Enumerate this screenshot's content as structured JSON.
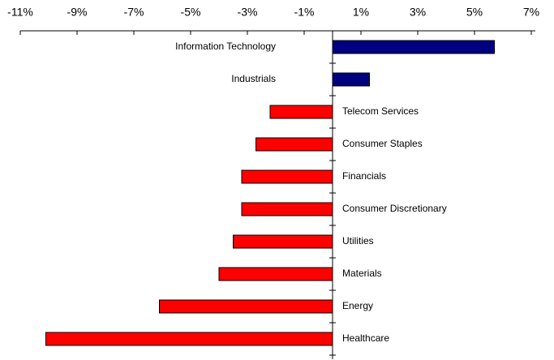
{
  "chart_data": {
    "type": "hbar",
    "categories": [
      "Information Technology",
      "Industrials",
      "Telecom Services",
      "Consumer Staples",
      "Financials",
      "Consumer Discretionary",
      "Utilities",
      "Materials",
      "Energy",
      "Healthcare"
    ],
    "values": [
      5.7,
      1.3,
      -2.2,
      -2.7,
      -3.2,
      -3.2,
      -3.5,
      -4.0,
      -6.1,
      -10.1
    ],
    "colors": [
      "#000080",
      "#000080",
      "#ff0000",
      "#ff0000",
      "#ff0000",
      "#ff0000",
      "#ff0000",
      "#ff0000",
      "#ff0000",
      "#ff0000"
    ],
    "xlim": [
      -11,
      7
    ],
    "xticks": [
      {
        "value": -11,
        "label": "-11%"
      },
      {
        "value": -9,
        "label": "-9%"
      },
      {
        "value": -7,
        "label": "-7%"
      },
      {
        "value": -5,
        "label": "-5%"
      },
      {
        "value": -3,
        "label": "-3%"
      },
      {
        "value": -1,
        "label": "-1%"
      },
      {
        "value": 1,
        "label": "1%"
      },
      {
        "value": 3,
        "label": "3%"
      },
      {
        "value": 5,
        "label": "5%"
      },
      {
        "value": 7,
        "label": "7%"
      }
    ]
  }
}
